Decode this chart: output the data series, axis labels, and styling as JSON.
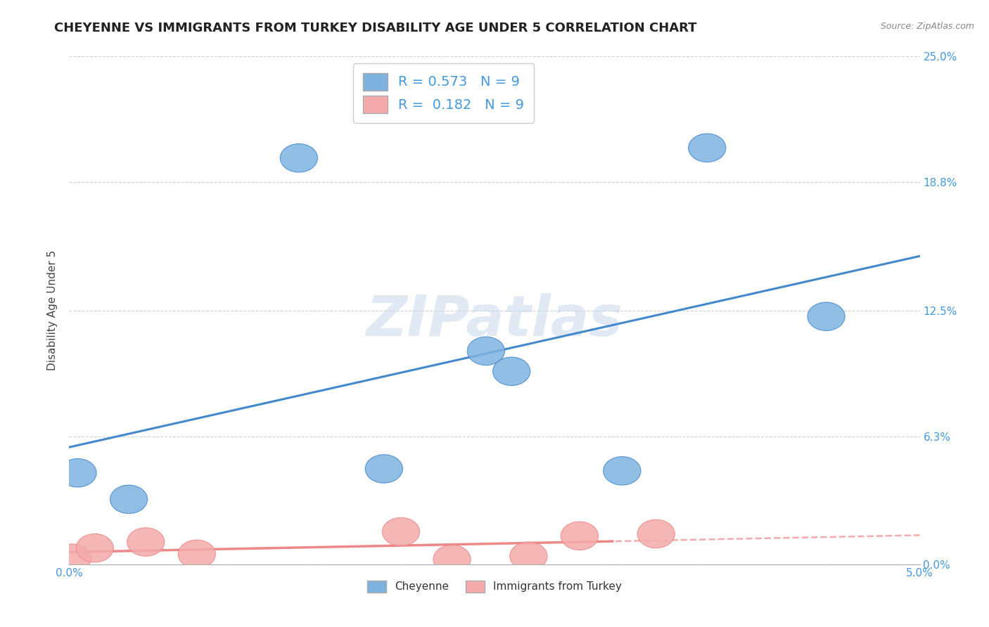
{
  "title": "CHEYENNE VS IMMIGRANTS FROM TURKEY DISABILITY AGE UNDER 5 CORRELATION CHART",
  "source": "Source: ZipAtlas.com",
  "xlabel_cheyenne": "Cheyenne",
  "xlabel_turkey": "Immigrants from Turkey",
  "ylabel": "Disability Age Under 5",
  "xlim": [
    0.0,
    5.0
  ],
  "ylim": [
    0.0,
    25.0
  ],
  "xtick_labels_show": [
    "0.0%",
    "5.0%"
  ],
  "xtick_vals_show": [
    0.0,
    5.0
  ],
  "ytick_labels_right": [
    "0.0%",
    "6.3%",
    "12.5%",
    "18.8%",
    "25.0%"
  ],
  "ytick_values": [
    0.0,
    6.3,
    12.5,
    18.8,
    25.0
  ],
  "cheyenne_color": "#7EB3E0",
  "turkey_color": "#F4AAAA",
  "cheyenne_line_color": "#4488CC",
  "turkey_line_color": "#EE8888",
  "turkey_line_dash_color": "#DDAAAA",
  "cheyenne_R": 0.573,
  "turkey_R": 0.182,
  "N": 9,
  "cheyenne_x": [
    0.05,
    0.35,
    1.35,
    1.85,
    2.45,
    2.6,
    3.25,
    3.75,
    4.45
  ],
  "cheyenne_y": [
    4.5,
    3.2,
    20.0,
    4.7,
    10.5,
    9.5,
    4.6,
    20.5,
    12.2
  ],
  "turkey_x": [
    0.02,
    0.15,
    0.45,
    0.75,
    1.95,
    2.25,
    2.7,
    3.0,
    3.45
  ],
  "turkey_y": [
    0.3,
    0.8,
    1.1,
    0.5,
    1.6,
    0.25,
    0.4,
    1.4,
    1.5
  ],
  "background_color": "#FFFFFF",
  "watermark": "ZIPatlas",
  "title_fontsize": 13,
  "label_fontsize": 11,
  "tick_fontsize": 11,
  "right_ytick_color": "#4499DD",
  "legend_fontsize": 14,
  "turkey_dash_start_x": 3.2
}
